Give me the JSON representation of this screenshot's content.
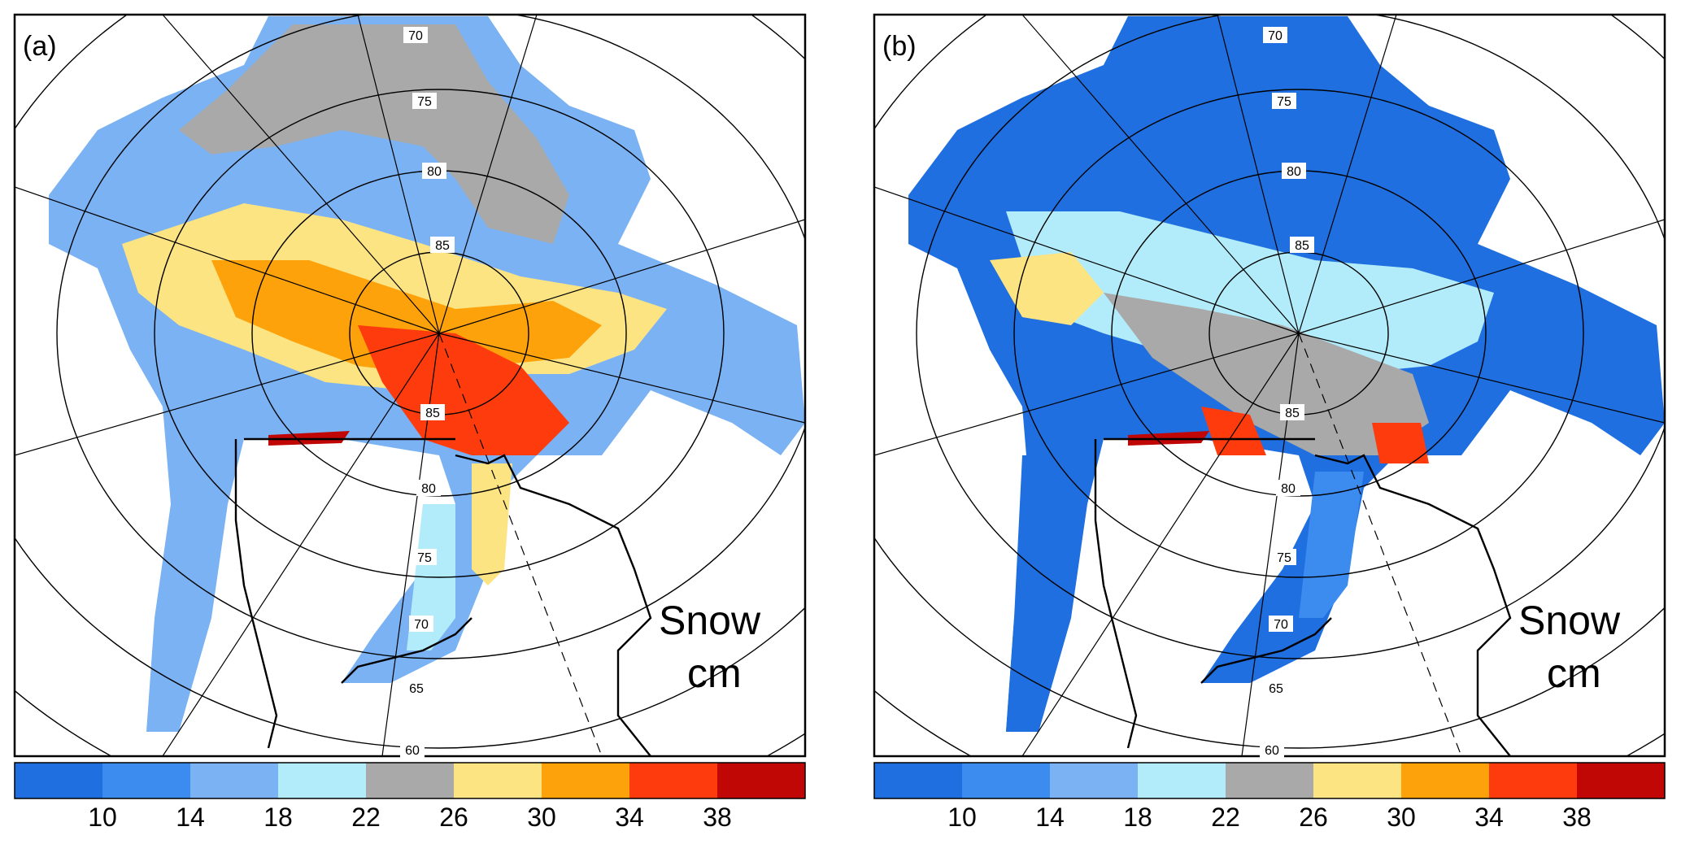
{
  "panels": [
    {
      "label": "(a)",
      "annotation": [
        "Snow",
        "cm"
      ],
      "latitude_labels_upper": [
        "70",
        "75",
        "80",
        "85"
      ],
      "latitude_labels_lower": [
        "85",
        "80",
        "75",
        "70",
        "65",
        "60"
      ]
    },
    {
      "label": "(b)",
      "annotation": [
        "Snow",
        "cm"
      ],
      "latitude_labels_upper": [
        "70",
        "75",
        "80",
        "85"
      ],
      "latitude_labels_lower": [
        "85",
        "80",
        "75",
        "70",
        "65",
        "60"
      ]
    }
  ],
  "colorbar": {
    "colors": [
      "#1f6fe0",
      "#3c8cf0",
      "#7ab2f4",
      "#b2ecfa",
      "#a9a9a9",
      "#fde483",
      "#fda20b",
      "#fe3b0c",
      "#c10606"
    ],
    "tick_labels": [
      "10",
      "14",
      "18",
      "22",
      "26",
      "30",
      "34",
      "38"
    ]
  }
}
